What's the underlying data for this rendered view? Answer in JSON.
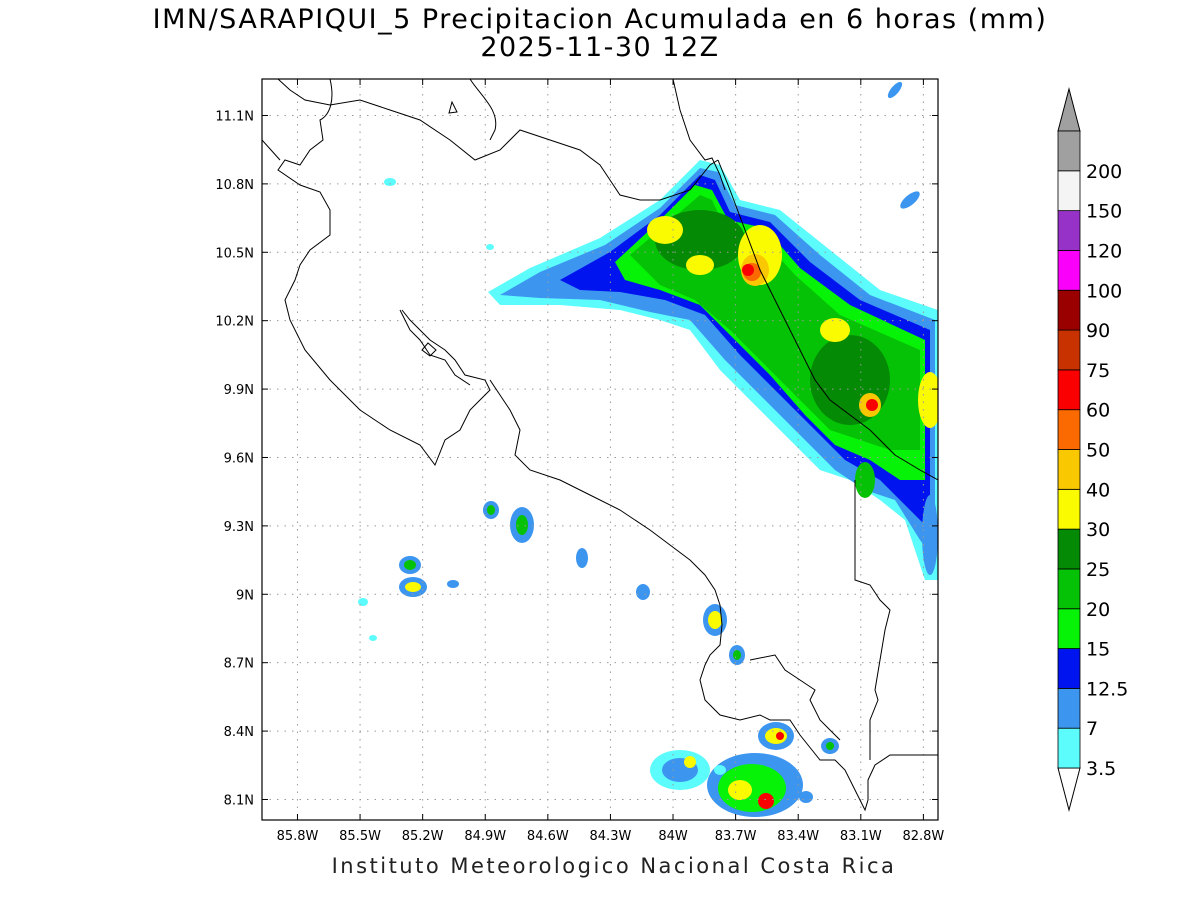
{
  "title": {
    "line1": "IMN/SARAPIQUI_5 Precipitacion Acumulada en 6 horas (mm)",
    "line2": "2025-11-30 12Z"
  },
  "footer": "Instituto Meteorologico Nacional Costa Rica",
  "map": {
    "lat_ticks": [
      {
        "label": "11.1N",
        "value": 11.1
      },
      {
        "label": "10.8N",
        "value": 10.8
      },
      {
        "label": "10.5N",
        "value": 10.5
      },
      {
        "label": "10.2N",
        "value": 10.2
      },
      {
        "label": "9.9N",
        "value": 9.9
      },
      {
        "label": "9.6N",
        "value": 9.6
      },
      {
        "label": "9.3N",
        "value": 9.3
      },
      {
        "label": "9N",
        "value": 9.0
      },
      {
        "label": "8.7N",
        "value": 8.7
      },
      {
        "label": "8.4N",
        "value": 8.4
      },
      {
        "label": "8.1N",
        "value": 8.1
      }
    ],
    "lon_ticks": [
      {
        "label": "85.8W",
        "value": -85.8
      },
      {
        "label": "85.5W",
        "value": -85.5
      },
      {
        "label": "85.2W",
        "value": -85.2
      },
      {
        "label": "84.9W",
        "value": -84.9
      },
      {
        "label": "84.6W",
        "value": -84.6
      },
      {
        "label": "84.3W",
        "value": -84.3
      },
      {
        "label": "84W",
        "value": -84.0
      },
      {
        "label": "83.7W",
        "value": -83.7
      },
      {
        "label": "83.4W",
        "value": -83.4
      },
      {
        "label": "83.1W",
        "value": -83.1
      },
      {
        "label": "82.8W",
        "value": -82.8
      }
    ],
    "lon_range": [
      -85.97,
      -82.73
    ],
    "lat_range": [
      8.01,
      11.26
    ],
    "grid": "dotted"
  },
  "colorbar": {
    "levels": [
      {
        "label": "3.5",
        "color": "#5cfcfc"
      },
      {
        "label": "7",
        "color": "#3c96f0"
      },
      {
        "label": "12.5",
        "color": "#0014f0"
      },
      {
        "label": "15",
        "color": "#06f206"
      },
      {
        "label": "20",
        "color": "#06c206"
      },
      {
        "label": "25",
        "color": "#048a04"
      },
      {
        "label": "30",
        "color": "#fafa00"
      },
      {
        "label": "40",
        "color": "#fac800"
      },
      {
        "label": "50",
        "color": "#fa6a00"
      },
      {
        "label": "60",
        "color": "#fa0000"
      },
      {
        "label": "75",
        "color": "#c83200"
      },
      {
        "label": "90",
        "color": "#9a0000"
      },
      {
        "label": "100",
        "color": "#fa00fa"
      },
      {
        "label": "120",
        "color": "#9632c8"
      },
      {
        "label": "150",
        "color": "#f4f4f4"
      },
      {
        "label": "200",
        "color": "#a0a0a0"
      }
    ],
    "top_cap_color": "#a0a0a0",
    "bottom_cap_color": "#ffffff"
  }
}
